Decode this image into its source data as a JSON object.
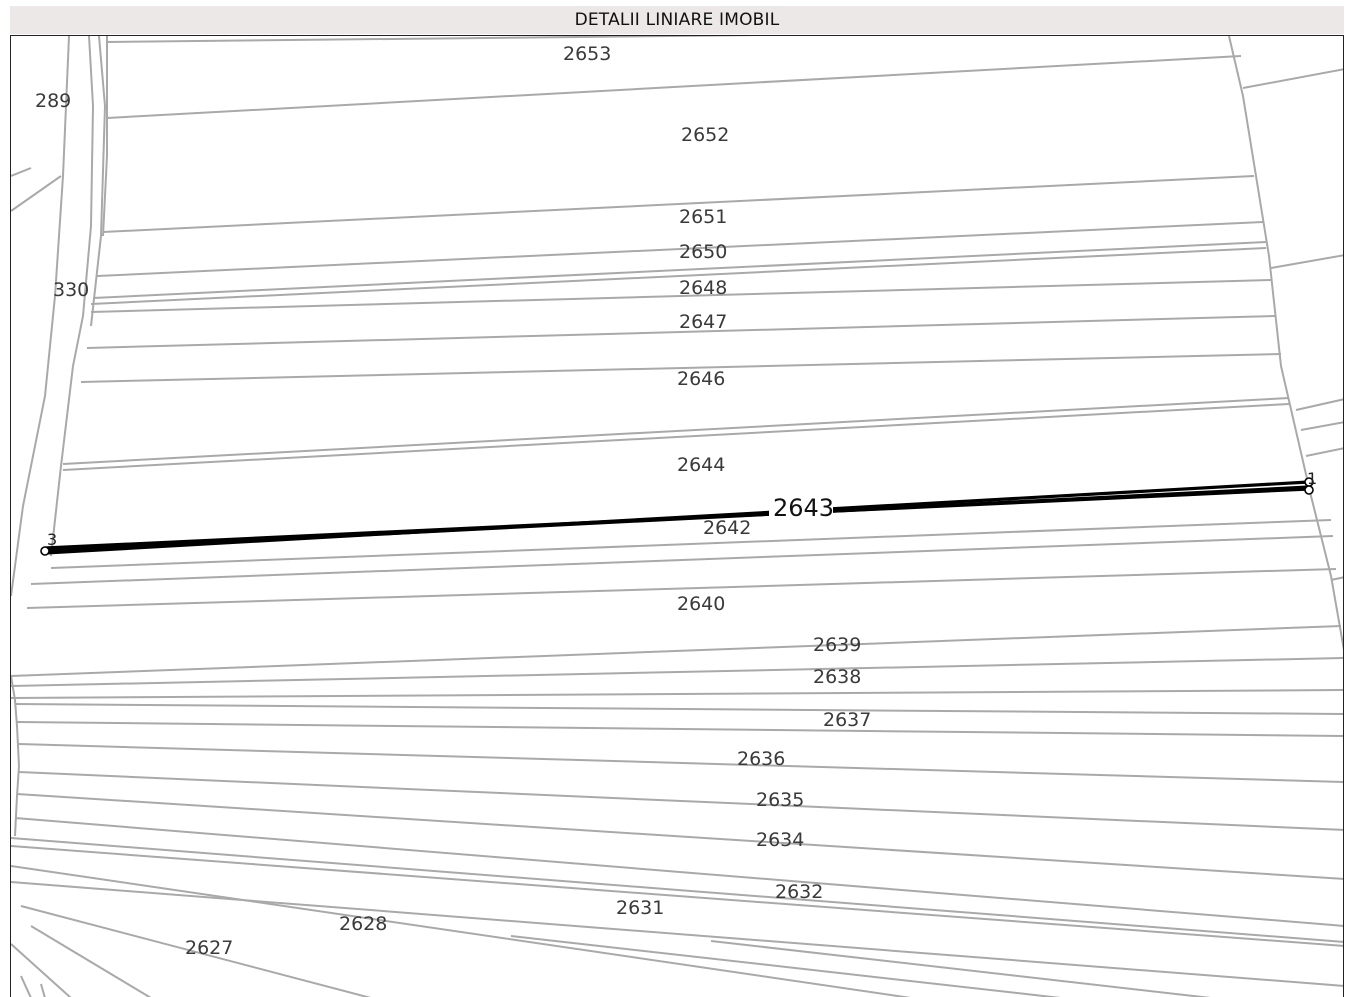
{
  "header": {
    "title": "DETALII LINIARE IMOBIL"
  },
  "map": {
    "highlighted_parcel": "2643",
    "vertices": [
      "1",
      "3"
    ],
    "parcels": [
      "2653",
      "289",
      "2652",
      "2651",
      "2650",
      "330",
      "2648",
      "2647",
      "2646",
      "2644",
      "2642",
      "2640",
      "2639",
      "2638",
      "2637",
      "2636",
      "2635",
      "2634",
      "2632",
      "2631",
      "2628",
      "2627"
    ],
    "colors": {
      "boundary": "#a9a9a9",
      "highlight": "#000000",
      "header_bg": "#ece8e8"
    }
  }
}
